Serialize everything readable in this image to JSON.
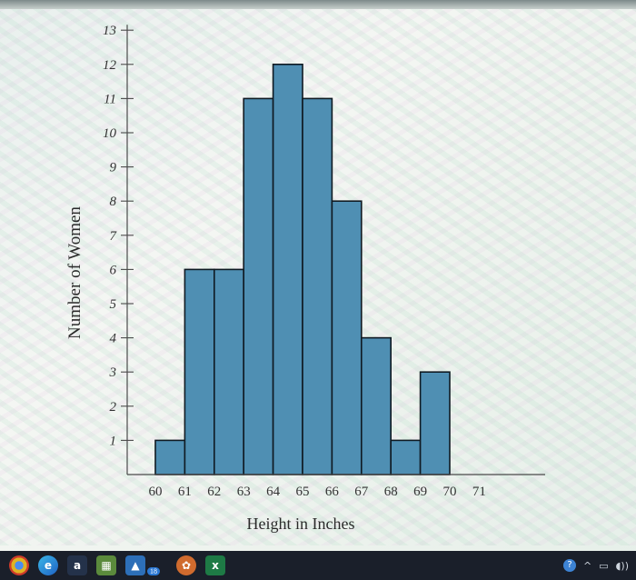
{
  "chart_data": {
    "type": "bar",
    "title": "",
    "xlabel": "Height in Inches",
    "ylabel": "Number of Women",
    "x_ticks": [
      "60",
      "61",
      "62",
      "63",
      "64",
      "65",
      "66",
      "67",
      "68",
      "69",
      "70",
      "71"
    ],
    "y_ticks": [
      "1",
      "2",
      "3",
      "4",
      "5",
      "6",
      "7",
      "8",
      "9",
      "10",
      "11",
      "12",
      "13"
    ],
    "bins": [
      {
        "from": 60,
        "to": 61,
        "value": 1
      },
      {
        "from": 61,
        "to": 62,
        "value": 6
      },
      {
        "from": 62,
        "to": 63,
        "value": 6
      },
      {
        "from": 63,
        "to": 64,
        "value": 11
      },
      {
        "from": 64,
        "to": 65,
        "value": 12
      },
      {
        "from": 65,
        "to": 66,
        "value": 11
      },
      {
        "from": 66,
        "to": 67,
        "value": 8
      },
      {
        "from": 67,
        "to": 68,
        "value": 4
      },
      {
        "from": 68,
        "to": 69,
        "value": 1
      },
      {
        "from": 69,
        "to": 70,
        "value": 3
      }
    ],
    "xlim": [
      60,
      71
    ],
    "ylim": [
      0,
      13
    ],
    "grid": false,
    "bar_color": "#4f8fb3",
    "edge_color": "#0f1a22"
  },
  "taskbar": {
    "icons": [
      "chrome-icon",
      "edge-icon",
      "amazon-icon",
      "minecraft-icon",
      "photos-icon",
      "badge-icon",
      "excel-icon"
    ],
    "badge_count": "18",
    "tray": [
      "help-icon",
      "chevron-up-icon",
      "battery-icon",
      "speaker-icon"
    ]
  }
}
